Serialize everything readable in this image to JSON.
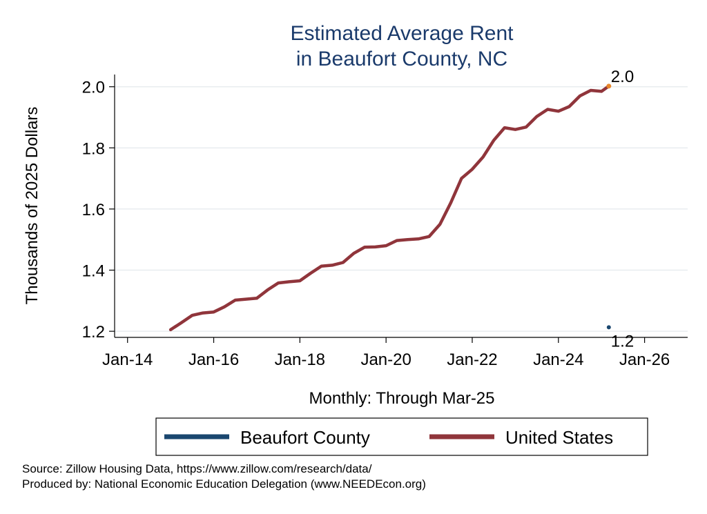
{
  "chart_data": {
    "type": "line",
    "title_lines": [
      "Estimated Average Rent",
      "in Beaufort County, NC"
    ],
    "xlabel": "Monthly: Through Mar-25",
    "ylabel": "Thousands of 2025 Dollars",
    "x_ticks": [
      "Jan-14",
      "Jan-16",
      "Jan-18",
      "Jan-20",
      "Jan-22",
      "Jan-24",
      "Jan-26"
    ],
    "y_ticks": [
      "1.2",
      "1.4",
      "1.6",
      "1.8",
      "2.0"
    ],
    "xlim": [
      2013.7,
      2027.0
    ],
    "ylim": [
      1.18,
      2.04
    ],
    "grid": true,
    "legend_position": "bottom",
    "series": [
      {
        "name": "Beaufort County",
        "color": "#1a476f",
        "points": [
          [
            2025.17,
            1.213
          ]
        ],
        "end_label": "1.2"
      },
      {
        "name": "United States",
        "color": "#90353b",
        "points": [
          [
            2015.0,
            1.205
          ],
          [
            2015.25,
            1.228
          ],
          [
            2015.5,
            1.252
          ],
          [
            2015.75,
            1.26
          ],
          [
            2016.0,
            1.263
          ],
          [
            2016.25,
            1.28
          ],
          [
            2016.5,
            1.302
          ],
          [
            2016.75,
            1.305
          ],
          [
            2017.0,
            1.308
          ],
          [
            2017.25,
            1.335
          ],
          [
            2017.5,
            1.358
          ],
          [
            2017.75,
            1.362
          ],
          [
            2018.0,
            1.365
          ],
          [
            2018.25,
            1.39
          ],
          [
            2018.5,
            1.413
          ],
          [
            2018.75,
            1.416
          ],
          [
            2019.0,
            1.425
          ],
          [
            2019.25,
            1.455
          ],
          [
            2019.5,
            1.475
          ],
          [
            2019.75,
            1.476
          ],
          [
            2020.0,
            1.48
          ],
          [
            2020.25,
            1.497
          ],
          [
            2020.5,
            1.5
          ],
          [
            2020.75,
            1.502
          ],
          [
            2021.0,
            1.51
          ],
          [
            2021.25,
            1.55
          ],
          [
            2021.5,
            1.62
          ],
          [
            2021.75,
            1.7
          ],
          [
            2022.0,
            1.73
          ],
          [
            2022.25,
            1.77
          ],
          [
            2022.5,
            1.825
          ],
          [
            2022.75,
            1.866
          ],
          [
            2023.0,
            1.86
          ],
          [
            2023.25,
            1.868
          ],
          [
            2023.5,
            1.903
          ],
          [
            2023.75,
            1.926
          ],
          [
            2024.0,
            1.92
          ],
          [
            2024.25,
            1.935
          ],
          [
            2024.5,
            1.97
          ],
          [
            2024.75,
            1.988
          ],
          [
            2025.0,
            1.985
          ],
          [
            2025.17,
            2.002
          ]
        ],
        "end_label": "2.0"
      }
    ]
  },
  "footer": {
    "source": "Source: Zillow Housing Data, https://www.zillow.com/research/data/",
    "producer": "Produced by: National Economic Education Delegation (www.NEEDEcon.org)"
  }
}
